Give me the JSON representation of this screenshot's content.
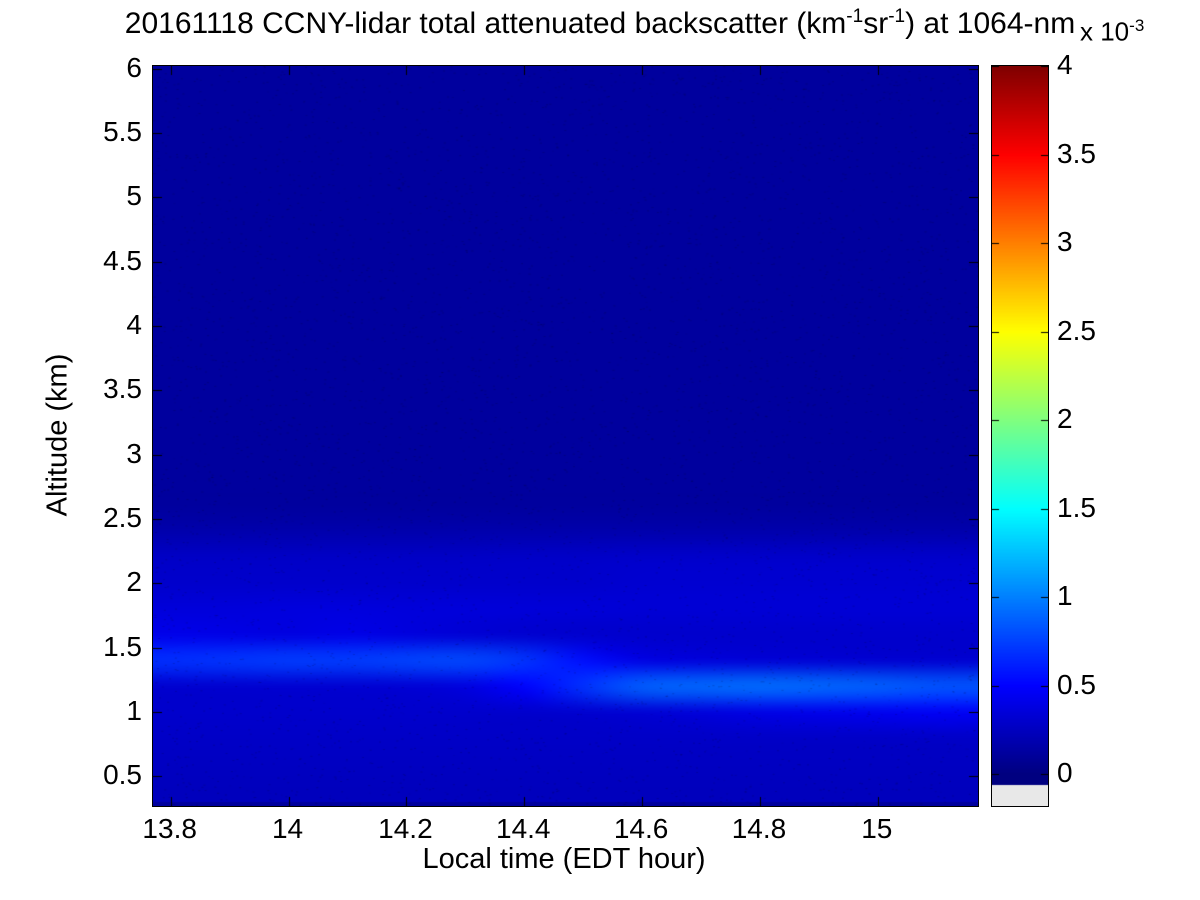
{
  "title": {
    "part1": "20161118 CCNY-lidar total attenuated backscatter (km",
    "sup1": "-1",
    "part2": "sr",
    "sup2": "-1",
    "part3": ") at 1064-nm"
  },
  "labels": {
    "xlabel": "Local time (EDT hour)",
    "ylabel": "Altitude (km)",
    "colorbar_exp_prefix": "x 10",
    "colorbar_exp_sup": "-3"
  },
  "chart_data": {
    "type": "heatmap",
    "title": "20161118 CCNY-lidar total attenuated backscatter (km^-1 sr^-1) at 1064-nm",
    "xlabel": "Local time (EDT hour)",
    "ylabel": "Altitude (km)",
    "colormap": "jet",
    "colorbar_label": "x 10^-3",
    "values_unit": "1e-3 km^-1 sr^-1",
    "xlim": [
      13.77,
      15.17
    ],
    "ylim": [
      0.27,
      6.02
    ],
    "clim": [
      0,
      4
    ],
    "xticks": [
      13.8,
      14,
      14.2,
      14.4,
      14.6,
      14.8,
      15
    ],
    "xtick_labels": [
      "13.8",
      "14",
      "14.2",
      "14.4",
      "14.6",
      "14.8",
      "15"
    ],
    "yticks": [
      0.5,
      1,
      1.5,
      2,
      2.5,
      3,
      3.5,
      4,
      4.5,
      5,
      5.5,
      6
    ],
    "ytick_labels": [
      "0.5",
      "1",
      "1.5",
      "2",
      "2.5",
      "3",
      "3.5",
      "4",
      "4.5",
      "5",
      "5.5",
      "6"
    ],
    "colorbar_ticks": [
      0,
      0.5,
      1,
      1.5,
      2,
      2.5,
      3,
      3.5,
      4
    ],
    "colorbar_tick_labels": [
      "0",
      "0.5",
      "1",
      "1.5",
      "2",
      "2.5",
      "3",
      "3.5",
      "4"
    ],
    "under_color": "#e8e8e8",
    "x": [
      13.8,
      13.9,
      14.0,
      14.1,
      14.2,
      14.3,
      14.4,
      14.5,
      14.6,
      14.7,
      14.8,
      14.9,
      15.0,
      15.1,
      15.2
    ],
    "altitudes": [
      6.0,
      5.8,
      5.6,
      5.4,
      5.2,
      5.0,
      4.8,
      4.6,
      4.4,
      4.2,
      4.0,
      3.8,
      3.6,
      3.4,
      3.2,
      3.0,
      2.8,
      2.6,
      2.4,
      2.2,
      2.0,
      1.8,
      1.6,
      1.4,
      1.2,
      1.0,
      0.8,
      0.6,
      0.4
    ],
    "values": [
      [
        0.12,
        0.12,
        0.12,
        0.12,
        0.12,
        0.12,
        0.12,
        0.12,
        0.12,
        0.12,
        0.12,
        0.12,
        0.12,
        0.12,
        0.12
      ],
      [
        0.12,
        0.12,
        0.12,
        0.12,
        0.12,
        0.12,
        0.12,
        0.12,
        0.12,
        0.12,
        0.12,
        0.12,
        0.12,
        0.12,
        0.12
      ],
      [
        0.12,
        0.12,
        0.12,
        0.12,
        0.12,
        0.12,
        0.12,
        0.12,
        0.12,
        0.12,
        0.12,
        0.12,
        0.12,
        0.12,
        0.12
      ],
      [
        0.12,
        0.12,
        0.12,
        0.12,
        0.12,
        0.12,
        0.12,
        0.12,
        0.12,
        0.12,
        0.12,
        0.12,
        0.12,
        0.12,
        0.12
      ],
      [
        0.12,
        0.12,
        0.12,
        0.12,
        0.12,
        0.12,
        0.12,
        0.12,
        0.12,
        0.12,
        0.12,
        0.12,
        0.12,
        0.12,
        0.12
      ],
      [
        0.12,
        0.12,
        0.12,
        0.12,
        0.12,
        0.12,
        0.12,
        0.12,
        0.12,
        0.12,
        0.12,
        0.12,
        0.12,
        0.12,
        0.12
      ],
      [
        0.12,
        0.12,
        0.12,
        0.12,
        0.12,
        0.12,
        0.12,
        0.12,
        0.12,
        0.12,
        0.12,
        0.12,
        0.12,
        0.12,
        0.12
      ],
      [
        0.12,
        0.12,
        0.12,
        0.12,
        0.12,
        0.12,
        0.12,
        0.12,
        0.12,
        0.12,
        0.12,
        0.12,
        0.12,
        0.12,
        0.12
      ],
      [
        0.12,
        0.12,
        0.12,
        0.12,
        0.12,
        0.12,
        0.12,
        0.12,
        0.12,
        0.12,
        0.12,
        0.12,
        0.12,
        0.12,
        0.12
      ],
      [
        0.12,
        0.12,
        0.12,
        0.12,
        0.12,
        0.12,
        0.12,
        0.12,
        0.12,
        0.12,
        0.12,
        0.12,
        0.12,
        0.12,
        0.12
      ],
      [
        0.12,
        0.12,
        0.12,
        0.12,
        0.12,
        0.12,
        0.12,
        0.12,
        0.12,
        0.12,
        0.12,
        0.12,
        0.12,
        0.12,
        0.12
      ],
      [
        0.12,
        0.12,
        0.12,
        0.12,
        0.12,
        0.12,
        0.12,
        0.12,
        0.12,
        0.12,
        0.12,
        0.12,
        0.12,
        0.12,
        0.12
      ],
      [
        0.12,
        0.12,
        0.12,
        0.12,
        0.12,
        0.12,
        0.12,
        0.12,
        0.12,
        0.12,
        0.12,
        0.12,
        0.12,
        0.12,
        0.12
      ],
      [
        0.12,
        0.12,
        0.12,
        0.12,
        0.12,
        0.12,
        0.12,
        0.12,
        0.12,
        0.12,
        0.12,
        0.12,
        0.12,
        0.12,
        0.12
      ],
      [
        0.12,
        0.12,
        0.12,
        0.12,
        0.12,
        0.12,
        0.12,
        0.12,
        0.12,
        0.12,
        0.12,
        0.12,
        0.12,
        0.12,
        0.12
      ],
      [
        0.12,
        0.12,
        0.12,
        0.12,
        0.12,
        0.12,
        0.12,
        0.12,
        0.12,
        0.12,
        0.12,
        0.12,
        0.12,
        0.12,
        0.12
      ],
      [
        0.12,
        0.12,
        0.12,
        0.12,
        0.12,
        0.12,
        0.12,
        0.12,
        0.12,
        0.12,
        0.12,
        0.12,
        0.12,
        0.12,
        0.12
      ],
      [
        0.12,
        0.12,
        0.12,
        0.12,
        0.12,
        0.12,
        0.12,
        0.12,
        0.12,
        0.12,
        0.12,
        0.12,
        0.12,
        0.12,
        0.12
      ],
      [
        0.18,
        0.18,
        0.18,
        0.18,
        0.18,
        0.18,
        0.18,
        0.18,
        0.18,
        0.18,
        0.18,
        0.18,
        0.18,
        0.18,
        0.18
      ],
      [
        0.28,
        0.28,
        0.28,
        0.28,
        0.28,
        0.28,
        0.29,
        0.29,
        0.3,
        0.3,
        0.3,
        0.3,
        0.3,
        0.3,
        0.3
      ],
      [
        0.3,
        0.3,
        0.3,
        0.3,
        0.3,
        0.3,
        0.3,
        0.3,
        0.32,
        0.32,
        0.32,
        0.32,
        0.32,
        0.32,
        0.32
      ],
      [
        0.36,
        0.36,
        0.37,
        0.37,
        0.36,
        0.36,
        0.35,
        0.35,
        0.34,
        0.34,
        0.34,
        0.34,
        0.34,
        0.34,
        0.34
      ],
      [
        0.42,
        0.4,
        0.38,
        0.41,
        0.37,
        0.33,
        0.31,
        0.3,
        0.3,
        0.3,
        0.3,
        0.3,
        0.3,
        0.3,
        0.3
      ],
      [
        0.69,
        0.71,
        0.74,
        0.74,
        0.77,
        0.79,
        0.71,
        0.55,
        0.39,
        0.36,
        0.34,
        0.33,
        0.32,
        0.32,
        0.32
      ],
      [
        0.31,
        0.31,
        0.32,
        0.32,
        0.33,
        0.37,
        0.5,
        0.7,
        0.89,
        0.92,
        0.94,
        0.92,
        0.89,
        0.84,
        0.84
      ],
      [
        0.3,
        0.3,
        0.3,
        0.3,
        0.3,
        0.3,
        0.3,
        0.31,
        0.33,
        0.36,
        0.4,
        0.42,
        0.44,
        0.47,
        0.46
      ],
      [
        0.28,
        0.28,
        0.28,
        0.28,
        0.28,
        0.28,
        0.28,
        0.28,
        0.28,
        0.28,
        0.28,
        0.28,
        0.28,
        0.28,
        0.28
      ],
      [
        0.26,
        0.26,
        0.26,
        0.26,
        0.26,
        0.26,
        0.26,
        0.26,
        0.26,
        0.26,
        0.26,
        0.26,
        0.26,
        0.26,
        0.26
      ],
      [
        0.24,
        0.24,
        0.24,
        0.24,
        0.24,
        0.24,
        0.24,
        0.24,
        0.24,
        0.24,
        0.24,
        0.24,
        0.24,
        0.24,
        0.24
      ]
    ]
  }
}
